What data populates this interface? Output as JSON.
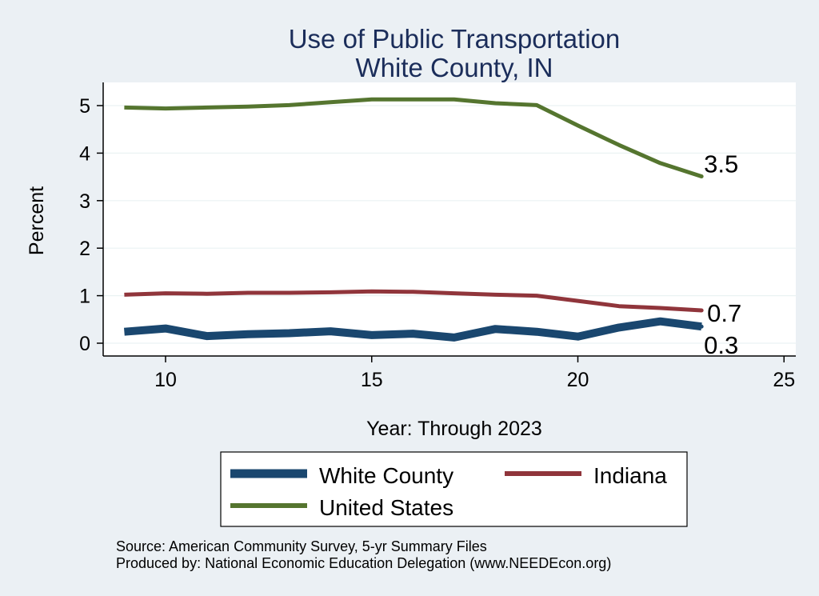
{
  "chart_data": {
    "type": "line",
    "title": "Use of Public Transportation",
    "subtitle": "White County, IN",
    "xlabel": "Year: Through 2023",
    "ylabel": "Percent",
    "xlim": [
      9,
      25
    ],
    "ylim": [
      0,
      5.2
    ],
    "xticks": [
      "10",
      "15",
      "20",
      "25"
    ],
    "yticks": [
      "0",
      "1",
      "2",
      "3",
      "4",
      "5"
    ],
    "grid": true,
    "legend_position": "bottom",
    "x": [
      9,
      10,
      11,
      12,
      13,
      14,
      15,
      16,
      17,
      18,
      19,
      20,
      21,
      22,
      23
    ],
    "series": [
      {
        "name": "White County",
        "color": "#1a476f",
        "values": [
          0.24,
          0.31,
          0.15,
          0.19,
          0.21,
          0.25,
          0.17,
          0.2,
          0.12,
          0.3,
          0.24,
          0.14,
          0.33,
          0.46,
          0.35
        ],
        "end_label": "0.3"
      },
      {
        "name": "Indiana",
        "color": "#90353b",
        "values": [
          1.02,
          1.05,
          1.04,
          1.06,
          1.06,
          1.07,
          1.09,
          1.08,
          1.05,
          1.02,
          1.0,
          0.89,
          0.78,
          0.74,
          0.69
        ],
        "end_label": "0.7"
      },
      {
        "name": "United States",
        "color": "#55752f",
        "values": [
          4.96,
          4.94,
          4.96,
          4.98,
          5.01,
          5.07,
          5.13,
          5.13,
          5.13,
          5.05,
          5.01,
          4.58,
          4.17,
          3.79,
          3.51
        ],
        "end_label": "3.5"
      }
    ],
    "notes": [
      "Source: American Community Survey, 5-yr Summary Files",
      "Produced by: National Economic Education Delegation (www.NEEDEcon.org)"
    ]
  }
}
